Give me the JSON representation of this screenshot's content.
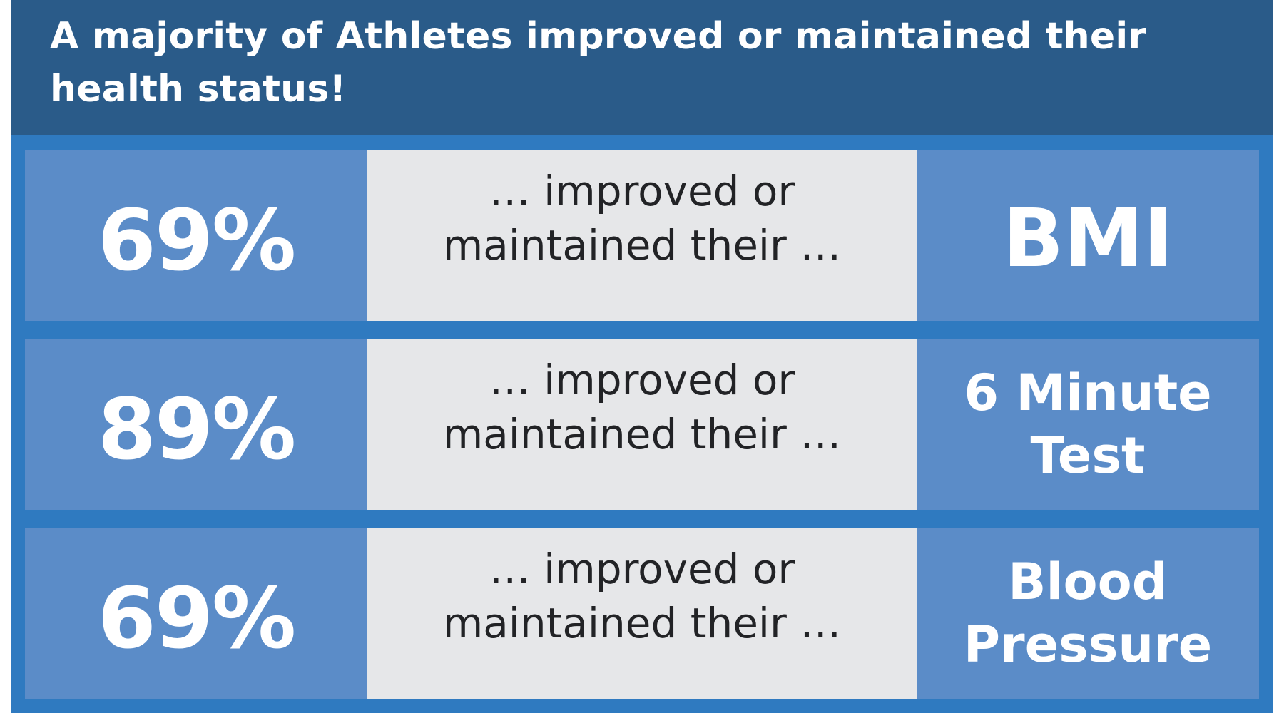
{
  "header": {
    "title_line1": "A majority of Athletes improved or maintained their",
    "title_line2": "health status!"
  },
  "rows": [
    {
      "percent": "69%",
      "phrase_line1": "… improved or",
      "phrase_line2": "maintained their …",
      "metric_line1": "BMI",
      "metric_line2": ""
    },
    {
      "percent": "89%",
      "phrase_line1": "… improved or",
      "phrase_line2": "maintained their …",
      "metric_line1": "6 Minute",
      "metric_line2": "Test"
    },
    {
      "percent": "69%",
      "phrase_line1": "… improved or",
      "phrase_line2": "maintained their …",
      "metric_line1": "Blood",
      "metric_line2": "Pressure"
    }
  ],
  "colors": {
    "header_bg": "#2a5b89",
    "frame_bg": "#2f7ac0",
    "tile_bg": "#5b8cc8",
    "phrase_bg": "#e6e7e9",
    "phrase_text": "#222326"
  }
}
